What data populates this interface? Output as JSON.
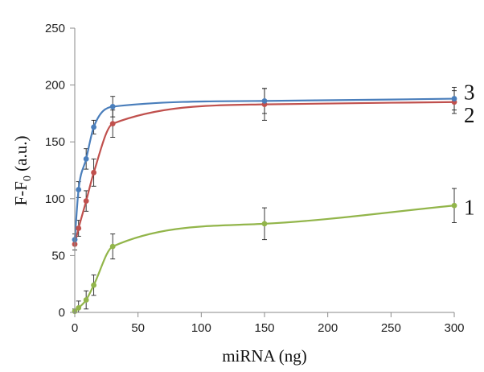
{
  "chart_data": {
    "type": "line",
    "title": "",
    "xlabel": "miRNA (ng)",
    "ylabel_main": "F-F",
    "ylabel_sub": "0",
    "ylabel_unit": " (a.u.)",
    "xlim": [
      0,
      300
    ],
    "ylim": [
      0,
      250
    ],
    "xticks": [
      "0",
      "50",
      "100",
      "150",
      "200",
      "250",
      "300"
    ],
    "yticks": [
      "0",
      "50",
      "100",
      "150",
      "200",
      "250"
    ],
    "grid": false,
    "legend": "none",
    "series": [
      {
        "label": "1",
        "color": "#92b54a",
        "x": [
          0,
          3,
          9,
          15,
          30,
          150,
          300
        ],
        "y": [
          1,
          4,
          11,
          24,
          58,
          78,
          94
        ],
        "err": [
          2,
          6,
          8,
          9,
          11,
          14,
          15
        ]
      },
      {
        "label": "2",
        "color": "#c0504d",
        "x": [
          0,
          3,
          9,
          15,
          30,
          150,
          300
        ],
        "y": [
          60,
          74,
          98,
          123,
          166,
          183,
          185
        ],
        "err": [
          5,
          7,
          9,
          12,
          12,
          14,
          10
        ]
      },
      {
        "label": "3",
        "color": "#4a7ebb",
        "x": [
          0,
          3,
          9,
          15,
          30,
          150,
          300
        ],
        "y": [
          64,
          108,
          135,
          163,
          181,
          186,
          188
        ],
        "err": [
          5,
          7,
          9,
          6,
          9,
          11,
          10
        ]
      }
    ]
  }
}
